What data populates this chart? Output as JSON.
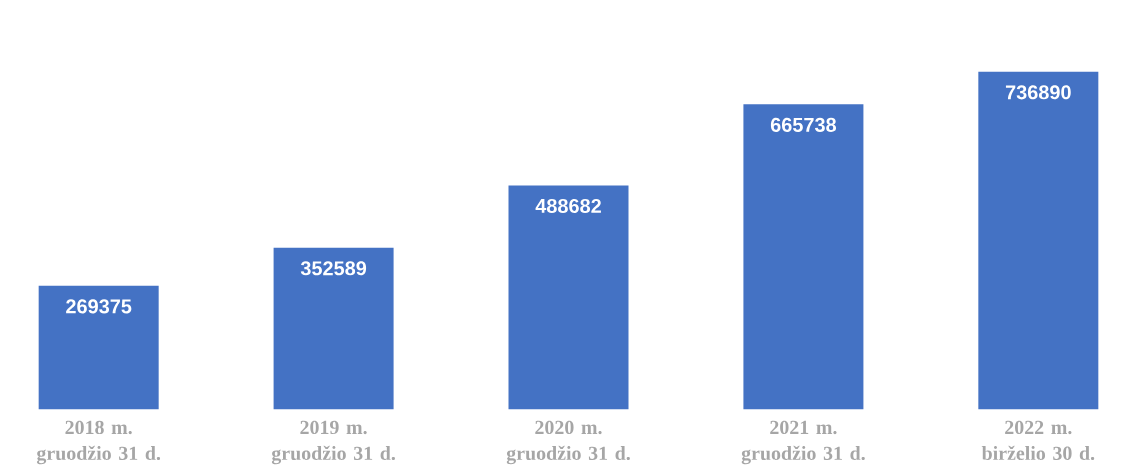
{
  "chart_data": {
    "type": "bar",
    "categories": [
      "2018 m. gruodžio 31 d.",
      "2019 m. gruodžio 31 d.",
      "2020 m. gruodžio 31 d.",
      "2021 m. gruodžio 31 d.",
      "2022 m. birželio 30 d."
    ],
    "values": [
      269375,
      352589,
      488682,
      665738,
      736890
    ],
    "color": "#4472c4",
    "data_labels": true
  }
}
